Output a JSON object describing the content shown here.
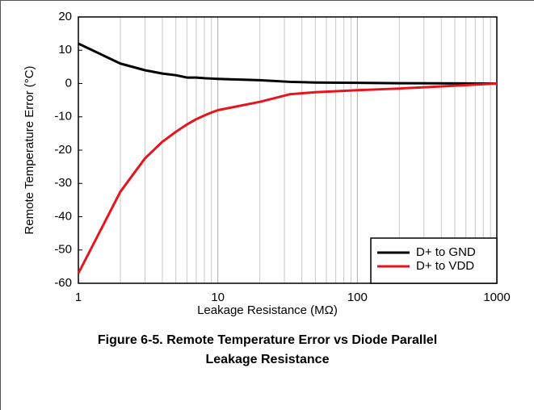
{
  "chart_data": {
    "type": "line",
    "title": [
      "Figure 6-5. Remote Temperature Error vs Diode Parallel",
      "Leakage Resistance"
    ],
    "xlabel": "Leakage Resistance (MΩ)",
    "ylabel": "Remote Temperature Error (°C)",
    "x": [
      1,
      2,
      3,
      4,
      5,
      6,
      7,
      8,
      9,
      10,
      20,
      33,
      50,
      100,
      200,
      1000
    ],
    "series": [
      {
        "name": "D+ to GND",
        "color": "#000000",
        "values": [
          12,
          6,
          4,
          3,
          2.5,
          1.8,
          1.8,
          1.6,
          1.5,
          1.4,
          1,
          0.5,
          0.3,
          0.2,
          0.1,
          0
        ]
      },
      {
        "name": "D+ to VDD",
        "color": "#e8141c",
        "values": [
          -57,
          -32.5,
          -22.5,
          -17.5,
          -14.5,
          -12.3,
          -10.7,
          -9.6,
          -8.7,
          -8,
          -5.5,
          -3.2,
          -2.6,
          -2,
          -1.5,
          0
        ]
      }
    ],
    "xscale": "log",
    "xlim": [
      1,
      1000
    ],
    "xticks": [
      1,
      10,
      100,
      1000
    ],
    "xminor_ticks": [
      2,
      3,
      4,
      5,
      6,
      7,
      8,
      9,
      20,
      30,
      40,
      50,
      60,
      70,
      80,
      90,
      200,
      300,
      400,
      500,
      600,
      700,
      800,
      900
    ],
    "ylim": [
      -60,
      20
    ],
    "yticks": [
      -60,
      -50,
      -40,
      -30,
      -20,
      -10,
      0,
      10,
      20
    ],
    "grid": "x",
    "legend": "lower right"
  }
}
